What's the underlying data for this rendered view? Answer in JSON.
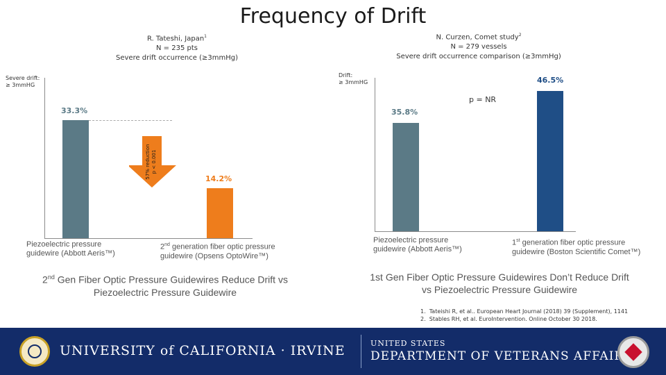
{
  "title": "Frequency of Drift",
  "left_panel": {
    "study_line1": "R. Tateshi, Japan",
    "study_sup1": "1",
    "study_line2": "N = 235 pts",
    "study_line3": "Severe drift occurrence (≥3mmHg)",
    "y_label_line1": "Severe drift:",
    "y_label_line2": "≥ 3mmHG",
    "reduction_line1": "57% reduction",
    "reduction_line2": "p < 0.001",
    "conclusion_prefix": "2",
    "conclusion_sup": "nd",
    "conclusion_rest": " Gen Fiber Optic Pressure Guidewires Reduce Drift vs Piezoelectric Pressure Guidewire"
  },
  "right_panel": {
    "study_line1": "N. Curzen, Comet study",
    "study_sup1": "2",
    "study_line2": "N = 279 vessels",
    "study_line3": "Severe drift occurrence comparison (≥3mmHg)",
    "y_label_line1": "Drift:",
    "y_label_line2": "≥ 3mmHG",
    "p_value": "p = NR",
    "conclusion": "1st Gen Fiber Optic Pressure Guidewires Don’t Reduce Drift vs Piezoelectric Pressure Guidewire"
  },
  "chart_data": [
    {
      "type": "bar",
      "title": "Severe drift occurrence (≥3mmHg)",
      "ylabel": "Severe drift: ≥ 3mmHG",
      "ylim": [
        0,
        40
      ],
      "categories": [
        "Piezoelectric pressure guidewire (Abbott Aeris™)",
        "2nd generation fiber optic pressure guidewire (Opsens OptoWire™)"
      ],
      "values": [
        33.3,
        14.2
      ],
      "labels": [
        "33.3%",
        "14.2%"
      ],
      "colors": [
        "#5b7a86",
        "#ee7d1c"
      ]
    },
    {
      "type": "bar",
      "title": "Severe drift occurrence comparison (≥3mmHg)",
      "ylabel": "Drift: ≥ 3mmHG",
      "ylim": [
        0,
        50
      ],
      "categories": [
        "Piezoelectric pressure guidewire (Abbott Aeris™)",
        "1st generation fiber optic pressure guidewire (Boston Scientific Comet™)"
      ],
      "values": [
        35.8,
        46.5
      ],
      "labels": [
        "35.8%",
        "46.5%"
      ],
      "colors": [
        "#5b7a86",
        "#1f4e86"
      ]
    }
  ],
  "categories_text": {
    "left_a_line1": "Piezoelectric pressure",
    "left_a_line2": "guidewire (Abbott Aeris™)",
    "left_b_prefix": "2",
    "left_b_sup": "nd",
    "left_b_line1_rest": " generation fiber optic pressure",
    "left_b_line2": "guidewire (Opsens OptoWire™)",
    "right_a_line1": "Piezoelectric pressure",
    "right_a_line2": "guidewire (Abbott Aeris™)",
    "right_b_prefix": "1",
    "right_b_sup": "st",
    "right_b_line1_rest": " generation fiber optic pressure",
    "right_b_line2": "guidewire (Boston Scientific Comet™)"
  },
  "references": [
    {
      "num": "1.",
      "text": "Tateishi R, et al.. European Heart Journal (2018) 39 (Supplement), 1141"
    },
    {
      "num": "2.",
      "text": "Stables RH, et al. EuroIntervention. Online October 30 2018."
    }
  ],
  "footer": {
    "uci_text": "UNIVERSITY of CALIFORNIA · IRVINE",
    "va_line1": "UNITED STATES",
    "va_line2": "DEPARTMENT OF VETERANS AFFAIRS",
    "background_color": "#132c69"
  }
}
